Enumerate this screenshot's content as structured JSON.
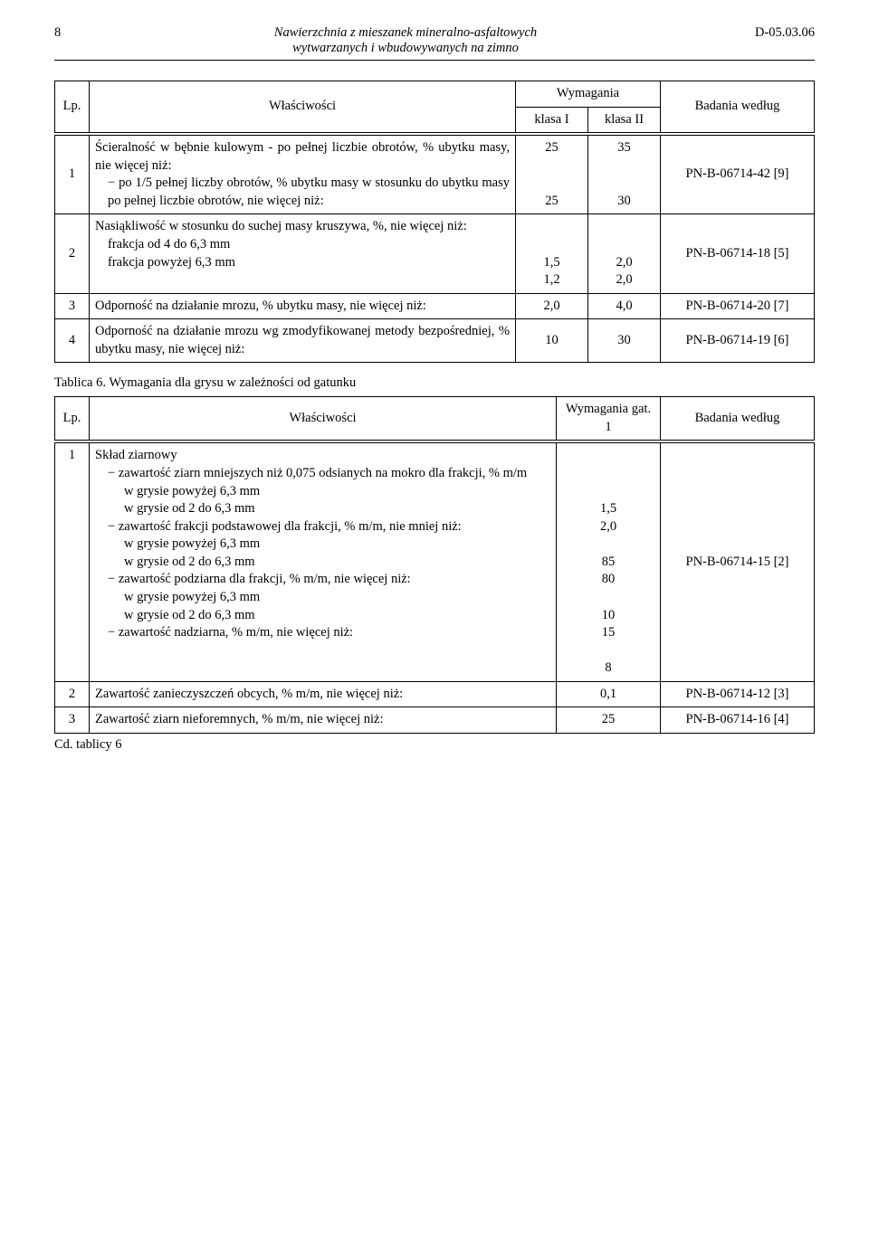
{
  "page": {
    "number": "8",
    "title_line1": "Nawierzchnia z mieszanek mineralno-asfaltowych",
    "title_line2": "wytwarzanych i wbudowywanych na zimno",
    "code": "D-05.03.06"
  },
  "table1": {
    "headers": {
      "lp": "Lp.",
      "prop": "Właściwości",
      "req": "Wymagania",
      "cls1": "klasa I",
      "cls2": "klasa II",
      "bad": "Badania według"
    },
    "rows": [
      {
        "n": "1",
        "prop_main": "Ścieralność w bębnie kulowym - po pełnej liczbie obrotów, % ubytku masy, nie więcej niż:",
        "prop_a": "po 1/5 pełnej liczby obrotów, % ubytku masy w stosunku do ubytku masy po pełnej liczbie obrotów, nie więcej niż:",
        "v1a": "25",
        "v2a": "35",
        "v1b": "25",
        "v2b": "30",
        "bad": "PN-B-06714-42 [9]"
      },
      {
        "n": "2",
        "prop_main": "Nasiąkliwość w stosunku do suchej masy kruszywa, %, nie więcej niż:",
        "prop_a": "frakcja od 4 do 6,3 mm",
        "prop_b": "frakcja powyżej 6,3 mm",
        "v1a": "1,5",
        "v2a": "2,0",
        "v1b": "1,2",
        "v2b": "2,0",
        "bad": "PN-B-06714-18 [5]"
      },
      {
        "n": "3",
        "prop_main": "Odporność na działanie mrozu, % ubytku masy, nie więcej niż:",
        "v1a": "2,0",
        "v2a": "4,0",
        "bad": "PN-B-06714-20 [7]"
      },
      {
        "n": "4",
        "prop_main": "Odporność na działanie mrozu wg zmodyfikowanej metody bezpośredniej, % ubytku masy, nie więcej niż:",
        "v1a": "10",
        "v2a": "30",
        "bad": "PN-B-06714-19 [6]"
      }
    ]
  },
  "caption2": "Tablica 6. Wymagania dla grysu w zależności od gatunku",
  "table2": {
    "headers": {
      "lp": "Lp.",
      "prop": "Właściwości",
      "req": "Wymagania gat. 1",
      "bad": "Badania według"
    },
    "rows": {
      "r1": {
        "n": "1",
        "head": "Skład ziarnowy",
        "a": "zawartość ziarn mniejszych niż 0,075 odsianych na mokro dla frakcji, % m/m",
        "a1": "w grysie powyżej 6,3 mm",
        "a2": "w grysie od 2 do 6,3 mm",
        "b": "zawartość frakcji podstawowej dla frakcji, % m/m, nie mniej niż:",
        "b1": "w grysie powyżej 6,3 mm",
        "b2": "w grysie od 2 do 6,3 mm",
        "c": "zawartość podziarna dla frakcji, % m/m, nie więcej niż:",
        "c1": "w grysie powyżej 6,3 mm",
        "c2": "w grysie od 2 do 6,3 mm",
        "d": "zawartość nadziarna, % m/m, nie więcej niż:",
        "vals": [
          "",
          "",
          "1,5",
          "2,0",
          "",
          "85",
          "80",
          "",
          "10",
          "15",
          "",
          "8"
        ],
        "bad": "PN-B-06714-15 [2]"
      },
      "r2": {
        "n": "2",
        "prop": "Zawartość zanieczyszczeń obcych, % m/m, nie więcej niż:",
        "val": "0,1",
        "bad": "PN-B-06714-12 [3]"
      },
      "r3": {
        "n": "3",
        "prop": "Zawartość ziarn nieforemnych, % m/m, nie więcej niż:",
        "val": "25",
        "bad": "PN-B-06714-16 [4]"
      }
    }
  },
  "cd": "Cd. tablicy 6"
}
